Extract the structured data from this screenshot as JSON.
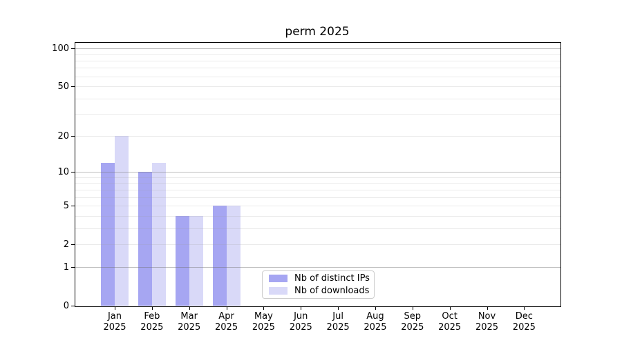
{
  "title": "perm 2025",
  "chart_data": {
    "type": "bar",
    "title": "perm 2025",
    "categories": [
      "Jan",
      "Feb",
      "Mar",
      "Apr",
      "May",
      "Jun",
      "Jul",
      "Aug",
      "Sep",
      "Oct",
      "Nov",
      "Dec"
    ],
    "year": "2025",
    "series": [
      {
        "name": "Nb of distinct IPs",
        "color": "#a6a6f2",
        "values": [
          12,
          10,
          4,
          5,
          0,
          0,
          0,
          0,
          0,
          0,
          0,
          0
        ]
      },
      {
        "name": "Nb of downloads",
        "color": "#d9d9f8",
        "values": [
          20,
          12,
          4,
          5,
          0,
          0,
          0,
          0,
          0,
          0,
          0,
          0
        ]
      }
    ],
    "y_scale": "log1p",
    "y_ticks": [
      0,
      1,
      2,
      5,
      10,
      20,
      50,
      100
    ],
    "y_minor_gridlines": [
      2,
      3,
      4,
      5,
      6,
      7,
      8,
      9,
      20,
      30,
      40,
      50,
      60,
      70,
      80,
      90
    ],
    "y_major_gridlines": [
      1,
      10,
      100
    ],
    "ylim": [
      0,
      113
    ],
    "grid": true,
    "legend_position": "lower center"
  }
}
